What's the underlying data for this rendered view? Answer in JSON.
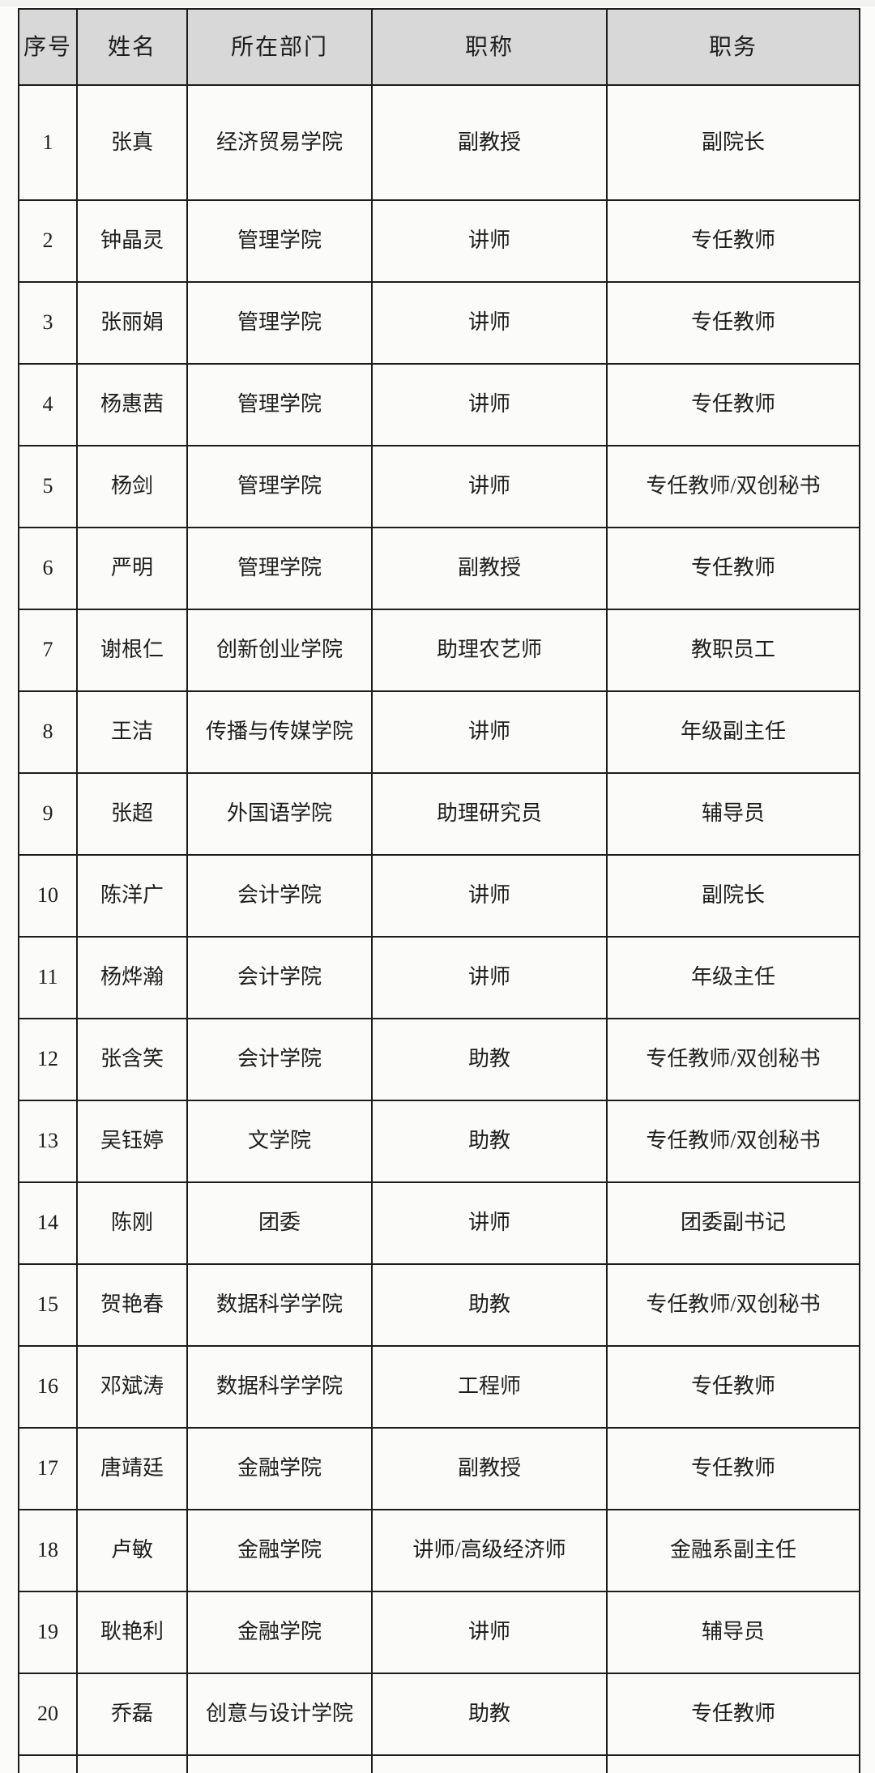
{
  "table": {
    "columns": [
      "序号",
      "姓名",
      "所在部门",
      "职称",
      "职务"
    ],
    "rows": [
      {
        "no": "1",
        "name": "张真",
        "dept": "经济贸易学院",
        "title": "副教授",
        "position": "副院长"
      },
      {
        "no": "2",
        "name": "钟晶灵",
        "dept": "管理学院",
        "title": "讲师",
        "position": "专任教师"
      },
      {
        "no": "3",
        "name": "张丽娟",
        "dept": "管理学院",
        "title": "讲师",
        "position": "专任教师"
      },
      {
        "no": "4",
        "name": "杨惠茜",
        "dept": "管理学院",
        "title": "讲师",
        "position": "专任教师"
      },
      {
        "no": "5",
        "name": "杨剑",
        "dept": "管理学院",
        "title": "讲师",
        "position": "专任教师/双创秘书"
      },
      {
        "no": "6",
        "name": "严明",
        "dept": "管理学院",
        "title": "副教授",
        "position": "专任教师"
      },
      {
        "no": "7",
        "name": "谢根仁",
        "dept": "创新创业学院",
        "title": "助理农艺师",
        "position": "教职员工"
      },
      {
        "no": "8",
        "name": "王洁",
        "dept": "传播与传媒学院",
        "title": "讲师",
        "position": "年级副主任"
      },
      {
        "no": "9",
        "name": "张超",
        "dept": "外国语学院",
        "title": "助理研究员",
        "position": "辅导员"
      },
      {
        "no": "10",
        "name": "陈洋广",
        "dept": "会计学院",
        "title": "讲师",
        "position": "副院长"
      },
      {
        "no": "11",
        "name": "杨烨瀚",
        "dept": "会计学院",
        "title": "讲师",
        "position": "年级主任"
      },
      {
        "no": "12",
        "name": "张含笑",
        "dept": "会计学院",
        "title": "助教",
        "position": "专任教师/双创秘书"
      },
      {
        "no": "13",
        "name": "吴钰婷",
        "dept": "文学院",
        "title": "助教",
        "position": "专任教师/双创秘书"
      },
      {
        "no": "14",
        "name": "陈刚",
        "dept": "团委",
        "title": "讲师",
        "position": "团委副书记"
      },
      {
        "no": "15",
        "name": "贺艳春",
        "dept": "数据科学学院",
        "title": "助教",
        "position": "专任教师/双创秘书"
      },
      {
        "no": "16",
        "name": "邓斌涛",
        "dept": "数据科学学院",
        "title": "工程师",
        "position": "专任教师"
      },
      {
        "no": "17",
        "name": "唐靖廷",
        "dept": "金融学院",
        "title": "副教授",
        "position": "专任教师"
      },
      {
        "no": "18",
        "name": "卢敏",
        "dept": "金融学院",
        "title": "讲师/高级经济师",
        "position": "金融系副主任"
      },
      {
        "no": "19",
        "name": "耿艳利",
        "dept": "金融学院",
        "title": "讲师",
        "position": "辅导员"
      },
      {
        "no": "20",
        "name": "乔磊",
        "dept": "创意与设计学院",
        "title": "助教",
        "position": "专任教师"
      }
    ]
  },
  "colors": {
    "header_bg": "#d8d8d8",
    "border": "#1d1d1d",
    "text": "#1e1e1e",
    "page_bg": "#fbfbfa"
  }
}
